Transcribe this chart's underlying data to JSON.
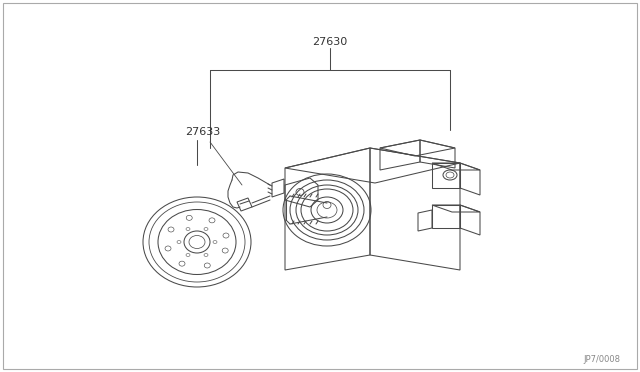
{
  "background_color": "#ffffff",
  "line_color": "#4a4a4a",
  "label_27630": "27630",
  "label_27633": "27633",
  "watermark": "JP7/0008",
  "figsize": [
    6.4,
    3.72
  ],
  "dpi": 100,
  "lw": 0.75
}
